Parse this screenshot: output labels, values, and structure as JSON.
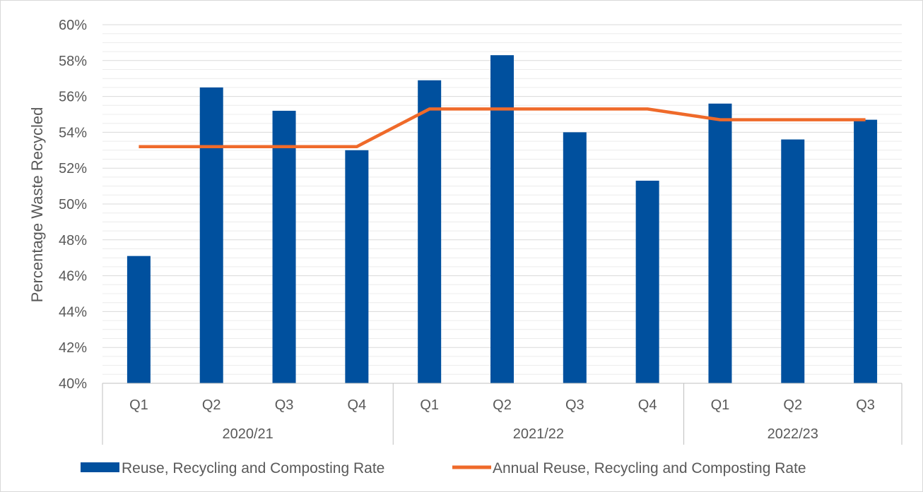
{
  "chart_data": {
    "type": "bar",
    "ylabel": "Percentage Waste Recycled",
    "ylim": [
      40,
      60
    ],
    "ytick_step": 2,
    "minor_grid_step": 0.5,
    "ytick_labels": [
      "40%",
      "42%",
      "44%",
      "46%",
      "48%",
      "50%",
      "52%",
      "54%",
      "56%",
      "58%",
      "60%"
    ],
    "categories": [
      "Q1",
      "Q2",
      "Q3",
      "Q4",
      "Q1",
      "Q2",
      "Q3",
      "Q4",
      "Q1",
      "Q2",
      "Q3"
    ],
    "groups": [
      {
        "label": "2020/21",
        "count": 4
      },
      {
        "label": "2021/22",
        "count": 4
      },
      {
        "label": "2022/23",
        "count": 3
      }
    ],
    "series": [
      {
        "name": "Reuse, Recycling and Composting Rate",
        "type": "bar",
        "color": "#00509e",
        "values": [
          47.1,
          56.5,
          55.2,
          53.0,
          56.9,
          58.3,
          54.0,
          51.3,
          55.6,
          53.6,
          54.7
        ]
      },
      {
        "name": "Annual Reuse, Recycling and Composting Rate",
        "type": "line",
        "color": "#ef6a2a",
        "values": [
          53.2,
          53.2,
          53.2,
          53.2,
          55.3,
          55.3,
          55.3,
          55.3,
          54.7,
          54.7,
          54.7
        ]
      }
    ],
    "grid": true,
    "legend_position": "bottom"
  }
}
